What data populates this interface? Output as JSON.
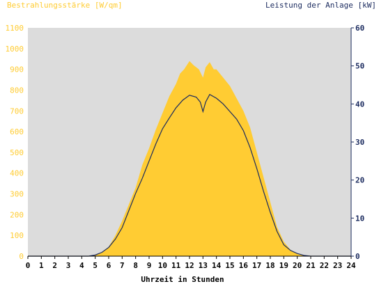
{
  "chart_data": {
    "type": "area",
    "left_axis_title": "Bestrahlungsstärke [W/qm]",
    "right_axis_title": "Leistung der Anlage [kW]",
    "xlabel": "Uhrzeit in Stunden",
    "xlim": [
      0,
      24
    ],
    "ylim_left": [
      0,
      1100
    ],
    "ylim_right": [
      0,
      60
    ],
    "x_ticks": [
      "0",
      "1",
      "2",
      "3",
      "4",
      "5",
      "6",
      "7",
      "8",
      "9",
      "10",
      "11",
      "12",
      "13",
      "14",
      "15",
      "16",
      "17",
      "18",
      "19",
      "20",
      "21",
      "22",
      "23",
      "24"
    ],
    "y_left_ticks": [
      "0",
      "100",
      "200",
      "300",
      "400",
      "500",
      "600",
      "700",
      "800",
      "900",
      "1000",
      "1100"
    ],
    "y_right_ticks": [
      "0",
      "10",
      "20",
      "30",
      "40",
      "50",
      "60"
    ],
    "grid": false,
    "colors": {
      "plot_background": "#dcdcdc",
      "irradiance_fill": "#ffcc33",
      "power_line": "#1a2a5e",
      "left_axis_text": "#ffcc33",
      "right_axis_text": "#1a2a5e",
      "x_axis_text": "#000000"
    },
    "series": [
      {
        "axis": "left",
        "style": "area",
        "points": [
          [
            0,
            0
          ],
          [
            4.5,
            0
          ],
          [
            5,
            5
          ],
          [
            5.5,
            20
          ],
          [
            6,
            45
          ],
          [
            6.5,
            100
          ],
          [
            7,
            170
          ],
          [
            7.5,
            250
          ],
          [
            8,
            330
          ],
          [
            8.5,
            440
          ],
          [
            9,
            520
          ],
          [
            9.5,
            610
          ],
          [
            10,
            690
          ],
          [
            10.5,
            770
          ],
          [
            11,
            830
          ],
          [
            11.3,
            880
          ],
          [
            11.6,
            900
          ],
          [
            12,
            940
          ],
          [
            12.3,
            920
          ],
          [
            12.7,
            900
          ],
          [
            13,
            860
          ],
          [
            13.2,
            910
          ],
          [
            13.5,
            935
          ],
          [
            13.8,
            900
          ],
          [
            14,
            900
          ],
          [
            14.5,
            860
          ],
          [
            15,
            820
          ],
          [
            15.5,
            760
          ],
          [
            16,
            700
          ],
          [
            16.5,
            620
          ],
          [
            17,
            500
          ],
          [
            17.5,
            380
          ],
          [
            18,
            260
          ],
          [
            18.5,
            140
          ],
          [
            19,
            70
          ],
          [
            19.5,
            30
          ],
          [
            20,
            10
          ],
          [
            20.5,
            2
          ],
          [
            21,
            0
          ],
          [
            24,
            0
          ]
        ]
      },
      {
        "axis": "right",
        "style": "line",
        "points": [
          [
            0,
            0
          ],
          [
            4.5,
            0
          ],
          [
            5,
            0.3
          ],
          [
            5.5,
            1
          ],
          [
            6,
            2.3
          ],
          [
            6.5,
            4.5
          ],
          [
            7,
            7.5
          ],
          [
            7.5,
            12
          ],
          [
            8,
            16.5
          ],
          [
            8.5,
            20.5
          ],
          [
            9,
            25
          ],
          [
            9.5,
            29.5
          ],
          [
            10,
            33.5
          ],
          [
            10.5,
            36.3
          ],
          [
            11,
            39
          ],
          [
            11.5,
            41
          ],
          [
            12,
            42.3
          ],
          [
            12.5,
            41.8
          ],
          [
            12.8,
            40.5
          ],
          [
            13,
            38
          ],
          [
            13.2,
            40.5
          ],
          [
            13.5,
            42.5
          ],
          [
            14,
            41.5
          ],
          [
            14.5,
            40
          ],
          [
            15,
            38
          ],
          [
            15.5,
            36
          ],
          [
            16,
            33
          ],
          [
            16.5,
            28.5
          ],
          [
            17,
            23
          ],
          [
            17.5,
            17
          ],
          [
            18,
            11.5
          ],
          [
            18.5,
            6.5
          ],
          [
            19,
            3
          ],
          [
            19.5,
            1.5
          ],
          [
            20,
            0.7
          ],
          [
            20.5,
            0.2
          ],
          [
            21,
            0
          ],
          [
            24,
            0
          ]
        ]
      }
    ]
  }
}
